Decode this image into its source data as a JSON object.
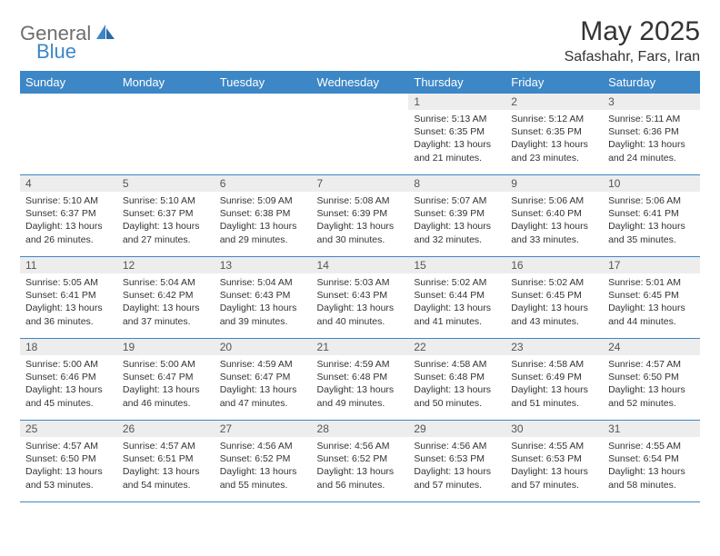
{
  "logo": {
    "part1": "General",
    "part2": "Blue"
  },
  "title": "May 2025",
  "location": "Safashahr, Fars, Iran",
  "colors": {
    "header_bg": "#3d87c7",
    "header_text": "#ffffff",
    "daynum_bg": "#ededed",
    "border": "#3d87c7",
    "logo_gray": "#6e6e6e",
    "logo_blue": "#3d87c7",
    "text": "#333333"
  },
  "day_headers": [
    "Sunday",
    "Monday",
    "Tuesday",
    "Wednesday",
    "Thursday",
    "Friday",
    "Saturday"
  ],
  "weeks": [
    [
      {
        "empty": true
      },
      {
        "empty": true
      },
      {
        "empty": true
      },
      {
        "empty": true
      },
      {
        "day": "1",
        "sunrise": "5:13 AM",
        "sunset": "6:35 PM",
        "daylight": "13 hours and 21 minutes."
      },
      {
        "day": "2",
        "sunrise": "5:12 AM",
        "sunset": "6:35 PM",
        "daylight": "13 hours and 23 minutes."
      },
      {
        "day": "3",
        "sunrise": "5:11 AM",
        "sunset": "6:36 PM",
        "daylight": "13 hours and 24 minutes."
      }
    ],
    [
      {
        "day": "4",
        "sunrise": "5:10 AM",
        "sunset": "6:37 PM",
        "daylight": "13 hours and 26 minutes."
      },
      {
        "day": "5",
        "sunrise": "5:10 AM",
        "sunset": "6:37 PM",
        "daylight": "13 hours and 27 minutes."
      },
      {
        "day": "6",
        "sunrise": "5:09 AM",
        "sunset": "6:38 PM",
        "daylight": "13 hours and 29 minutes."
      },
      {
        "day": "7",
        "sunrise": "5:08 AM",
        "sunset": "6:39 PM",
        "daylight": "13 hours and 30 minutes."
      },
      {
        "day": "8",
        "sunrise": "5:07 AM",
        "sunset": "6:39 PM",
        "daylight": "13 hours and 32 minutes."
      },
      {
        "day": "9",
        "sunrise": "5:06 AM",
        "sunset": "6:40 PM",
        "daylight": "13 hours and 33 minutes."
      },
      {
        "day": "10",
        "sunrise": "5:06 AM",
        "sunset": "6:41 PM",
        "daylight": "13 hours and 35 minutes."
      }
    ],
    [
      {
        "day": "11",
        "sunrise": "5:05 AM",
        "sunset": "6:41 PM",
        "daylight": "13 hours and 36 minutes."
      },
      {
        "day": "12",
        "sunrise": "5:04 AM",
        "sunset": "6:42 PM",
        "daylight": "13 hours and 37 minutes."
      },
      {
        "day": "13",
        "sunrise": "5:04 AM",
        "sunset": "6:43 PM",
        "daylight": "13 hours and 39 minutes."
      },
      {
        "day": "14",
        "sunrise": "5:03 AM",
        "sunset": "6:43 PM",
        "daylight": "13 hours and 40 minutes."
      },
      {
        "day": "15",
        "sunrise": "5:02 AM",
        "sunset": "6:44 PM",
        "daylight": "13 hours and 41 minutes."
      },
      {
        "day": "16",
        "sunrise": "5:02 AM",
        "sunset": "6:45 PM",
        "daylight": "13 hours and 43 minutes."
      },
      {
        "day": "17",
        "sunrise": "5:01 AM",
        "sunset": "6:45 PM",
        "daylight": "13 hours and 44 minutes."
      }
    ],
    [
      {
        "day": "18",
        "sunrise": "5:00 AM",
        "sunset": "6:46 PM",
        "daylight": "13 hours and 45 minutes."
      },
      {
        "day": "19",
        "sunrise": "5:00 AM",
        "sunset": "6:47 PM",
        "daylight": "13 hours and 46 minutes."
      },
      {
        "day": "20",
        "sunrise": "4:59 AM",
        "sunset": "6:47 PM",
        "daylight": "13 hours and 47 minutes."
      },
      {
        "day": "21",
        "sunrise": "4:59 AM",
        "sunset": "6:48 PM",
        "daylight": "13 hours and 49 minutes."
      },
      {
        "day": "22",
        "sunrise": "4:58 AM",
        "sunset": "6:48 PM",
        "daylight": "13 hours and 50 minutes."
      },
      {
        "day": "23",
        "sunrise": "4:58 AM",
        "sunset": "6:49 PM",
        "daylight": "13 hours and 51 minutes."
      },
      {
        "day": "24",
        "sunrise": "4:57 AM",
        "sunset": "6:50 PM",
        "daylight": "13 hours and 52 minutes."
      }
    ],
    [
      {
        "day": "25",
        "sunrise": "4:57 AM",
        "sunset": "6:50 PM",
        "daylight": "13 hours and 53 minutes."
      },
      {
        "day": "26",
        "sunrise": "4:57 AM",
        "sunset": "6:51 PM",
        "daylight": "13 hours and 54 minutes."
      },
      {
        "day": "27",
        "sunrise": "4:56 AM",
        "sunset": "6:52 PM",
        "daylight": "13 hours and 55 minutes."
      },
      {
        "day": "28",
        "sunrise": "4:56 AM",
        "sunset": "6:52 PM",
        "daylight": "13 hours and 56 minutes."
      },
      {
        "day": "29",
        "sunrise": "4:56 AM",
        "sunset": "6:53 PM",
        "daylight": "13 hours and 57 minutes."
      },
      {
        "day": "30",
        "sunrise": "4:55 AM",
        "sunset": "6:53 PM",
        "daylight": "13 hours and 57 minutes."
      },
      {
        "day": "31",
        "sunrise": "4:55 AM",
        "sunset": "6:54 PM",
        "daylight": "13 hours and 58 minutes."
      }
    ]
  ],
  "labels": {
    "sunrise": "Sunrise:",
    "sunset": "Sunset:",
    "daylight": "Daylight:"
  }
}
